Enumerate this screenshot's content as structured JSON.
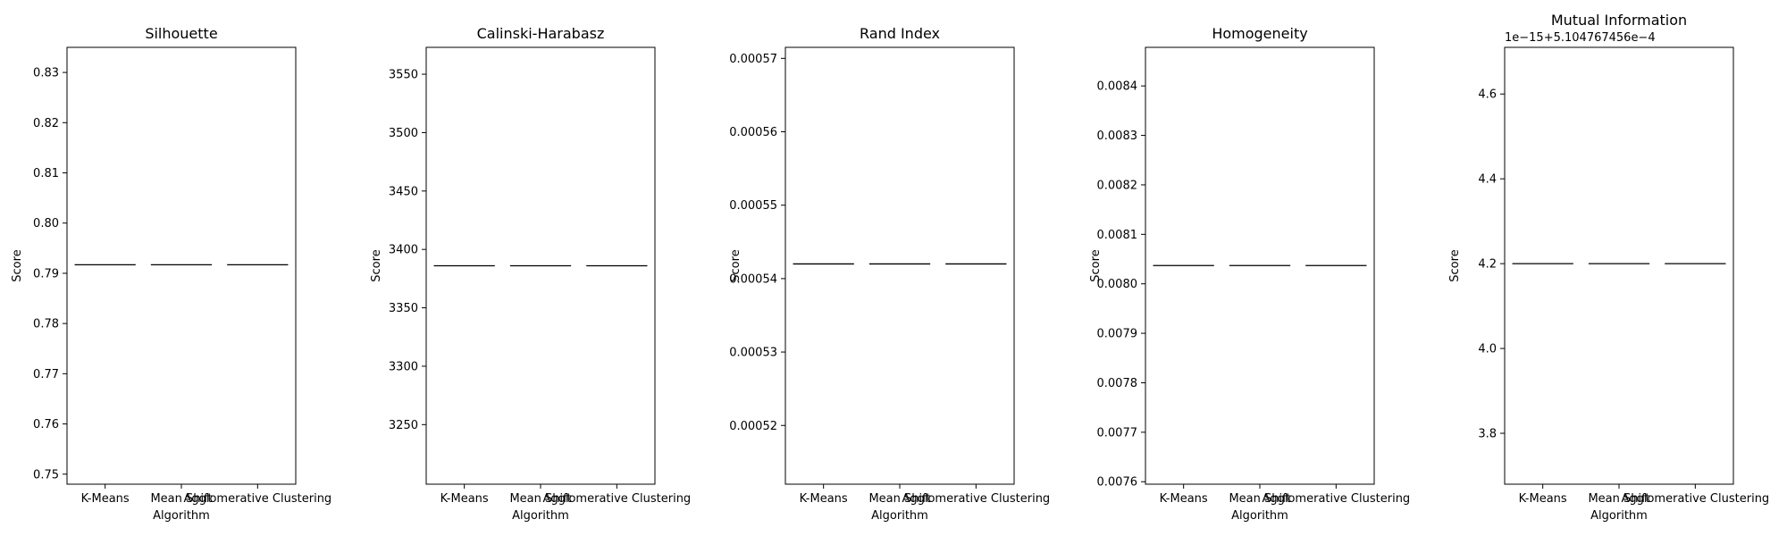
{
  "chart_data": [
    {
      "type": "box",
      "title": "Silhouette",
      "xlabel": "Algorithm",
      "ylabel": "Score",
      "categories": [
        "K-Means",
        "Mean Shift",
        "Agglomerative Clustering"
      ],
      "values": [
        0.7917,
        0.7917,
        0.7917
      ],
      "ylim": [
        0.748,
        0.835
      ],
      "yticks": [
        0.75,
        0.76,
        0.77,
        0.78,
        0.79,
        0.8,
        0.81,
        0.82,
        0.83
      ],
      "ytick_labels": [
        "0.75",
        "0.76",
        "0.77",
        "0.78",
        "0.79",
        "0.80",
        "0.81",
        "0.82",
        "0.83"
      ],
      "offset_text": "",
      "grid": false
    },
    {
      "type": "box",
      "title": "Calinski-Harabasz",
      "xlabel": "Algorithm",
      "ylabel": "Score",
      "categories": [
        "K-Means",
        "Mean Shift",
        "Agglomerative Clustering"
      ],
      "values": [
        3386,
        3386,
        3386
      ],
      "ylim": [
        3199,
        3573
      ],
      "yticks": [
        3250,
        3300,
        3350,
        3400,
        3450,
        3500,
        3550
      ],
      "ytick_labels": [
        "3250",
        "3300",
        "3350",
        "3400",
        "3450",
        "3500",
        "3550"
      ],
      "offset_text": "",
      "grid": false
    },
    {
      "type": "box",
      "title": "Rand Index",
      "xlabel": "Algorithm",
      "ylabel": "Score",
      "categories": [
        "K-Means",
        "Mean Shift",
        "Agglomerative Clustering"
      ],
      "values": [
        0.000542,
        0.000542,
        0.000542
      ],
      "ylim": [
        0.000512,
        0.0005715
      ],
      "yticks": [
        0.00052,
        0.00053,
        0.00054,
        0.00055,
        0.00056,
        0.00057
      ],
      "ytick_labels": [
        "0.00052",
        "0.00053",
        "0.00054",
        "0.00055",
        "0.00056",
        "0.00057"
      ],
      "offset_text": "",
      "grid": false
    },
    {
      "type": "box",
      "title": "Homogeneity",
      "xlabel": "Algorithm",
      "ylabel": "Score",
      "categories": [
        "K-Means",
        "Mean Shift",
        "Agglomerative Clustering"
      ],
      "values": [
        0.008037,
        0.008037,
        0.008037
      ],
      "ylim": [
        0.007595,
        0.008478
      ],
      "yticks": [
        0.0076,
        0.0077,
        0.0078,
        0.0079,
        0.008,
        0.0081,
        0.0082,
        0.0083,
        0.0084
      ],
      "ytick_labels": [
        "0.0076",
        "0.0077",
        "0.0078",
        "0.0079",
        "0.0080",
        "0.0081",
        "0.0082",
        "0.0083",
        "0.0084"
      ],
      "offset_text": "",
      "grid": false
    },
    {
      "type": "box",
      "title": "Mutual Information",
      "xlabel": "Algorithm",
      "ylabel": "Score",
      "categories": [
        "K-Means",
        "Mean Shift",
        "Agglomerative Clustering"
      ],
      "values": [
        4.2,
        4.2,
        4.2
      ],
      "ylim": [
        3.68,
        4.71
      ],
      "yticks": [
        3.8,
        4.0,
        4.2,
        4.4,
        4.6
      ],
      "ytick_labels": [
        "3.8",
        "4.0",
        "4.2",
        "4.4",
        "4.6"
      ],
      "offset_text": "1e−15+5.104767456e−4",
      "grid": false
    }
  ]
}
